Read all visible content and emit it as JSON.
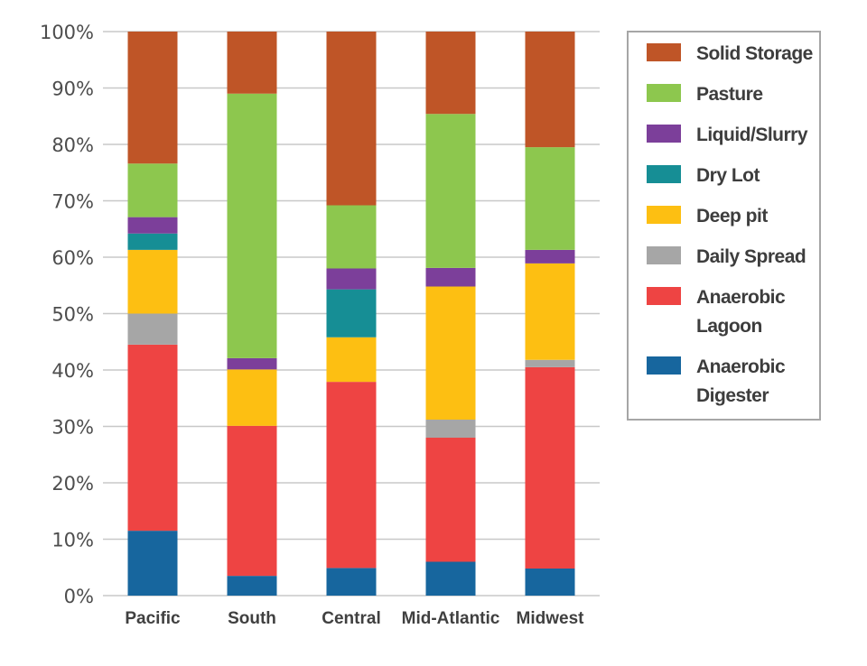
{
  "chart_data": {
    "type": "bar",
    "stacked": true,
    "normalized": true,
    "title": "",
    "xlabel": "",
    "ylabel": "",
    "ylim": [
      0,
      100
    ],
    "yticks": [
      0,
      10,
      20,
      30,
      40,
      50,
      60,
      70,
      80,
      90,
      100
    ],
    "ytick_labels": [
      "0%",
      "10%",
      "20%",
      "30%",
      "40%",
      "50%",
      "60%",
      "70%",
      "80%",
      "90%",
      "100%"
    ],
    "grid": true,
    "legend_position": "right",
    "categories": [
      "Pacific",
      "South",
      "Central",
      "Mid-Atlantic",
      "Midwest"
    ],
    "series": [
      {
        "name": "Anaerobic Digester",
        "legend_lines": [
          "Anaerobic",
          "Digester"
        ],
        "color": "#17669e",
        "values": [
          11.5,
          3.5,
          4.9,
          6.0,
          4.8
        ]
      },
      {
        "name": "Anaerobic Lagoon",
        "legend_lines": [
          "Anaerobic",
          "Lagoon"
        ],
        "color": "#ee4443",
        "values": [
          33.0,
          26.6,
          33.0,
          22.0,
          35.7
        ]
      },
      {
        "name": "Daily Spread",
        "legend_lines": [
          "Daily Spread"
        ],
        "color": "#a6a6a6",
        "values": [
          5.5,
          0,
          0,
          3.2,
          1.3
        ]
      },
      {
        "name": "Deep pit",
        "legend_lines": [
          "Deep pit"
        ],
        "color": "#fdbf12",
        "values": [
          11.3,
          10.0,
          7.9,
          23.6,
          17.1
        ]
      },
      {
        "name": "Dry Lot",
        "legend_lines": [
          "Dry Lot"
        ],
        "color": "#168e95",
        "values": [
          2.9,
          0,
          8.5,
          0,
          0
        ]
      },
      {
        "name": "Liquid/Slurry",
        "legend_lines": [
          "Liquid/Slurry"
        ],
        "color": "#7c3f9a",
        "values": [
          2.9,
          2.0,
          3.7,
          3.3,
          2.4
        ]
      },
      {
        "name": "Pasture",
        "legend_lines": [
          "Pasture"
        ],
        "color": "#8dc74e",
        "values": [
          9.5,
          46.9,
          11.2,
          27.3,
          18.2
        ]
      },
      {
        "name": "Solid Storage",
        "legend_lines": [
          "Solid Storage"
        ],
        "color": "#bf5527",
        "values": [
          23.4,
          11.0,
          30.8,
          14.6,
          20.5
        ]
      }
    ]
  }
}
